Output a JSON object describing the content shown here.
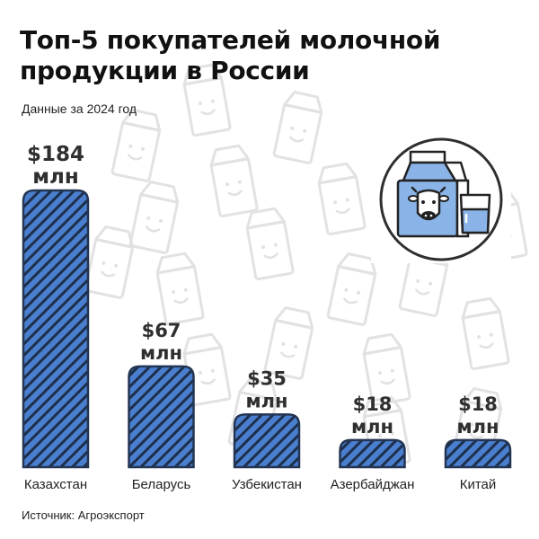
{
  "title_line1": "Топ-5 покупателей молочной",
  "title_line2": "продукции в России",
  "subtitle": "Данные за 2024 год",
  "source": "Источник: Агроэкспорт",
  "icon": "milk-carton-and-glass-icon",
  "colors": {
    "bar_fill": "#4a7fd0",
    "bar_stripe": "#1e2f4a",
    "bar_outline": "#233552",
    "icon_blue": "#8ab4e8",
    "pattern": "#e2e2e2"
  },
  "chart_data": {
    "type": "bar",
    "title": "Топ-5 покупателей молочной продукции в России",
    "xlabel": "",
    "ylabel": "",
    "categories": [
      "Казахстан",
      "Беларусь",
      "Узбекистан",
      "Азербайджан",
      "Китай"
    ],
    "values": [
      184,
      67,
      35,
      18,
      18
    ],
    "value_labels": [
      [
        "$184",
        "млн"
      ],
      [
        "$67",
        "млн"
      ],
      [
        "$35",
        "млн"
      ],
      [
        "$18",
        "млн"
      ],
      [
        "$18",
        "млн"
      ]
    ],
    "unit": "млн $",
    "ylim": [
      0,
      184
    ]
  }
}
